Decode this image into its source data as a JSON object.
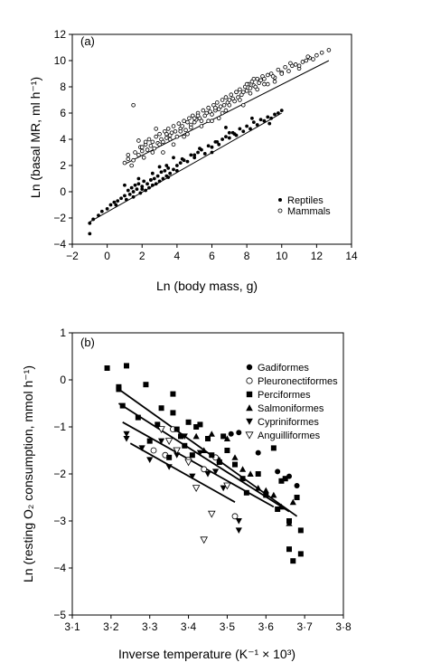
{
  "chart_data": [
    {
      "panel_label": "(a)",
      "type": "scatter",
      "xlabel": "Ln (body mass, g)",
      "ylabel": "Ln (basal MR, ml h⁻¹)",
      "xlim": [
        -2,
        14
      ],
      "ylim": [
        -4,
        12
      ],
      "xticks": [
        -2,
        0,
        2,
        4,
        6,
        8,
        10,
        12,
        14
      ],
      "yticks": [
        -4,
        -2,
        0,
        2,
        4,
        6,
        8,
        10,
        12
      ],
      "xtick_labels": [
        "−2",
        "0",
        "2",
        "4",
        "6",
        "8",
        "10",
        "12",
        "14"
      ],
      "ytick_labels": [
        "−4",
        "−2",
        "0",
        "2",
        "4",
        "6",
        "8",
        "10",
        "12"
      ],
      "grid": false,
      "legend_position": "bottom-right",
      "series": [
        {
          "name": "Reptiles",
          "marker": "filled-circle",
          "trend": {
            "x": [
              -1.0,
              10.0
            ],
            "y": [
              -2.3,
              6.0
            ]
          },
          "x": [
            -1.0,
            -0.8,
            -0.5,
            -0.3,
            0.0,
            0.2,
            0.4,
            0.6,
            0.8,
            1.0,
            1.1,
            1.2,
            1.3,
            1.4,
            1.5,
            1.6,
            1.7,
            1.8,
            1.9,
            2.0,
            2.1,
            2.2,
            2.3,
            2.4,
            2.5,
            2.6,
            2.7,
            2.8,
            2.9,
            3.0,
            3.1,
            3.2,
            3.3,
            3.4,
            3.5,
            3.6,
            3.8,
            4.0,
            4.2,
            4.4,
            4.6,
            4.8,
            5.0,
            5.2,
            5.4,
            5.6,
            5.8,
            6.0,
            6.2,
            6.4,
            6.6,
            6.8,
            7.0,
            7.2,
            7.4,
            7.6,
            7.8,
            8.0,
            8.2,
            8.4,
            8.6,
            8.8,
            9.0,
            9.2,
            9.4,
            9.6,
            9.8,
            10.0,
            1.5,
            2.0,
            2.5,
            3.0,
            3.5,
            4.0,
            5.0,
            6.0,
            7.0,
            1.0,
            1.8,
            2.6,
            3.4,
            4.3,
            5.3,
            6.3,
            7.3,
            8.3,
            9.3,
            -1.0,
            0.5,
            3.8,
            6.8
          ],
          "y": [
            -2.4,
            -2.1,
            -1.8,
            -1.5,
            -1.3,
            -1.0,
            -0.8,
            -0.7,
            -0.5,
            -0.3,
            -0.6,
            0.1,
            -0.2,
            0.3,
            0.0,
            0.5,
            0.2,
            0.6,
            -0.1,
            0.4,
            0.8,
            0.1,
            0.6,
            0.3,
            0.9,
            0.5,
            1.0,
            0.6,
            1.2,
            0.8,
            1.5,
            1.0,
            1.6,
            1.2,
            1.8,
            1.4,
            1.7,
            2.0,
            2.2,
            2.4,
            2.3,
            2.8,
            2.6,
            3.0,
            3.2,
            2.9,
            3.5,
            3.4,
            3.8,
            3.6,
            4.0,
            4.2,
            4.1,
            4.5,
            4.3,
            4.8,
            4.6,
            5.0,
            4.8,
            5.3,
            5.1,
            5.5,
            5.4,
            5.7,
            5.6,
            5.9,
            6.0,
            6.2,
            -0.4,
            0.2,
            0.9,
            1.9,
            1.1,
            1.6,
            2.8,
            3.0,
            4.5,
            0.5,
            1.0,
            1.4,
            2.0,
            2.5,
            3.3,
            3.8,
            4.4,
            5.6,
            5.2,
            -3.2,
            -1.0,
            2.6,
            4.9
          ]
        },
        {
          "name": "Mammals",
          "marker": "open-circle",
          "trend": {
            "x": [
              1.0,
              12.7
            ],
            "y": [
              2.1,
              10.0
            ]
          },
          "x": [
            1.0,
            1.2,
            1.4,
            1.5,
            1.6,
            1.8,
            1.9,
            2.0,
            2.1,
            2.2,
            2.3,
            2.4,
            2.5,
            2.6,
            2.7,
            2.8,
            2.9,
            3.0,
            3.1,
            3.2,
            3.3,
            3.4,
            3.5,
            3.6,
            3.7,
            3.8,
            3.9,
            4.0,
            4.1,
            4.2,
            4.3,
            4.4,
            4.5,
            4.6,
            4.7,
            4.8,
            4.9,
            5.0,
            5.1,
            5.2,
            5.3,
            5.4,
            5.5,
            5.6,
            5.7,
            5.8,
            5.9,
            6.0,
            6.1,
            6.2,
            6.3,
            6.4,
            6.5,
            6.6,
            6.7,
            6.8,
            6.9,
            7.0,
            7.1,
            7.2,
            7.3,
            7.4,
            7.5,
            7.6,
            7.7,
            7.8,
            7.9,
            8.0,
            8.1,
            8.2,
            8.3,
            8.4,
            8.5,
            8.6,
            8.7,
            8.8,
            8.9,
            9.0,
            9.2,
            9.4,
            9.6,
            9.8,
            10.0,
            10.2,
            10.4,
            10.6,
            10.8,
            11.0,
            11.2,
            11.4,
            11.6,
            11.8,
            12.0,
            12.3,
            12.7,
            1.5,
            2.2,
            2.6,
            3.0,
            3.4,
            3.8,
            4.2,
            4.6,
            5.0,
            5.4,
            5.8,
            6.2,
            6.6,
            7.0,
            7.4,
            7.8,
            8.2,
            8.6,
            9.0,
            9.5,
            10.5,
            11.5,
            2.0,
            2.8,
            3.6,
            4.4,
            5.2,
            6.0,
            6.8,
            7.6,
            8.4,
            9.2,
            10.0,
            1.2,
            1.8,
            3.2,
            4.8,
            6.4,
            8.0,
            9.6,
            11.0
          ],
          "y": [
            2.2,
            2.5,
            2.0,
            6.6,
            3.0,
            2.8,
            3.4,
            3.1,
            2.6,
            3.6,
            3.2,
            4.0,
            3.5,
            3.8,
            3.3,
            4.2,
            3.7,
            4.4,
            4.0,
            3.8,
            4.6,
            4.1,
            4.8,
            4.3,
            4.5,
            5.0,
            4.6,
            4.2,
            5.2,
            4.8,
            5.0,
            5.4,
            4.7,
            5.3,
            5.6,
            5.1,
            5.8,
            5.3,
            5.5,
            6.0,
            5.6,
            5.4,
            6.2,
            5.8,
            6.0,
            6.4,
            6.1,
            5.9,
            6.6,
            6.2,
            6.8,
            6.3,
            6.5,
            7.0,
            6.6,
            7.2,
            6.8,
            7.0,
            7.4,
            7.1,
            6.9,
            7.6,
            7.2,
            7.8,
            7.4,
            7.6,
            8.0,
            7.7,
            8.2,
            7.9,
            8.4,
            8.1,
            8.0,
            8.6,
            8.3,
            8.5,
            8.8,
            8.6,
            8.9,
            9.0,
            8.7,
            9.3,
            9.1,
            9.5,
            9.2,
            9.6,
            9.7,
            9.4,
            9.9,
            10.0,
            10.2,
            10.1,
            10.4,
            10.6,
            10.8,
            2.4,
            3.8,
            3.0,
            3.6,
            4.4,
            3.6,
            4.6,
            4.4,
            5.6,
            5.0,
            5.4,
            6.4,
            6.0,
            6.6,
            7.6,
            6.6,
            7.5,
            7.8,
            8.2,
            8.8,
            9.8,
            10.3,
            3.4,
            4.8,
            4.0,
            4.2,
            5.8,
            5.4,
            6.2,
            7.0,
            8.6,
            8.2,
            9.0,
            2.8,
            3.9,
            3.0,
            4.9,
            5.6,
            8.2,
            8.4,
            9.6
          ]
        }
      ]
    },
    {
      "panel_label": "(b)",
      "type": "scatter",
      "xlabel": "Inverse temperature (K⁻¹ × 10³)",
      "ylabel": "Ln (resting O₂ consumption, mmol h⁻¹)",
      "xlim": [
        3.1,
        3.8
      ],
      "ylim": [
        -5,
        1
      ],
      "xticks": [
        3.1,
        3.2,
        3.3,
        3.4,
        3.5,
        3.6,
        3.7,
        3.8
      ],
      "yticks": [
        -5,
        -4,
        -3,
        -2,
        -1,
        0,
        1
      ],
      "xtick_labels": [
        "3·1",
        "3·2",
        "3·3",
        "3·4",
        "3·5",
        "3·6",
        "3·7",
        "3·8"
      ],
      "ytick_labels": [
        "−5",
        "−4",
        "−3",
        "−2",
        "−1",
        "0",
        "1"
      ],
      "grid": false,
      "legend_position": "top-right",
      "trend_lines": [
        {
          "x": [
            3.22,
            3.68
          ],
          "y": [
            -0.2,
            -2.9
          ]
        },
        {
          "x": [
            3.22,
            3.66
          ],
          "y": [
            -0.5,
            -2.8
          ]
        },
        {
          "x": [
            3.23,
            3.62
          ],
          "y": [
            -0.9,
            -2.7
          ]
        },
        {
          "x": [
            3.25,
            3.52
          ],
          "y": [
            -1.35,
            -2.6
          ]
        }
      ],
      "series": [
        {
          "name": "Gadiformes",
          "marker": "filled-circle",
          "x": [
            3.51,
            3.53,
            3.58,
            3.63,
            3.66,
            3.68
          ],
          "y": [
            -1.15,
            -1.12,
            -1.55,
            -1.95,
            -2.05,
            -2.25
          ]
        },
        {
          "name": "Pleuronectiformes",
          "marker": "open-circle",
          "x": [
            3.31,
            3.34,
            3.36,
            3.4,
            3.44,
            3.47,
            3.52
          ],
          "y": [
            -1.5,
            -1.6,
            -1.05,
            -1.7,
            -1.9,
            -1.65,
            -2.9
          ]
        },
        {
          "name": "Perciformes",
          "marker": "filled-square",
          "x": [
            3.19,
            3.22,
            3.23,
            3.24,
            3.27,
            3.29,
            3.3,
            3.32,
            3.33,
            3.35,
            3.36,
            3.36,
            3.37,
            3.38,
            3.39,
            3.4,
            3.41,
            3.42,
            3.43,
            3.45,
            3.46,
            3.48,
            3.49,
            3.5,
            3.52,
            3.54,
            3.55,
            3.58,
            3.6,
            3.62,
            3.63,
            3.64,
            3.65,
            3.66,
            3.66,
            3.67,
            3.68,
            3.69,
            3.69,
            3.22
          ],
          "y": [
            0.25,
            -0.2,
            -0.55,
            0.3,
            -0.8,
            -0.1,
            -1.3,
            -0.95,
            -0.6,
            -1.65,
            -0.3,
            -0.7,
            -1.05,
            -1.2,
            -1.4,
            -0.9,
            -1.6,
            -1.0,
            -0.95,
            -1.25,
            -1.6,
            -1.75,
            -1.2,
            -1.5,
            -1.8,
            -2.1,
            -2.4,
            -2.0,
            -2.45,
            -1.45,
            -2.75,
            -2.15,
            -2.1,
            -3.0,
            -3.6,
            -3.85,
            -2.5,
            -3.2,
            -3.7,
            -0.15
          ]
        },
        {
          "name": "Salmoniformes",
          "marker": "filled-triangle-up",
          "x": [
            3.42,
            3.44,
            3.46,
            3.48,
            3.5,
            3.52,
            3.54,
            3.56,
            3.58,
            3.6,
            3.62,
            3.64,
            3.66,
            3.67
          ],
          "y": [
            -1.2,
            -1.5,
            -1.15,
            -1.7,
            -1.25,
            -1.65,
            -1.9,
            -2.0,
            -2.3,
            -2.35,
            -2.45,
            -2.7,
            -3.05,
            -2.6
          ]
        },
        {
          "name": "Cypriniformes",
          "marker": "filled-triangle-down",
          "x": [
            3.24,
            3.28,
            3.3,
            3.33,
            3.35,
            3.37,
            3.39,
            3.41,
            3.43,
            3.45,
            3.47,
            3.49,
            3.53,
            3.53,
            3.24
          ],
          "y": [
            -1.15,
            -1.45,
            -1.7,
            -1.3,
            -1.85,
            -1.6,
            -1.2,
            -2.05,
            -1.55,
            -2.0,
            -1.95,
            -2.3,
            -3.0,
            -3.2,
            -1.25
          ]
        },
        {
          "name": "Anguilliformes",
          "marker": "open-triangle-down",
          "x": [
            3.33,
            3.35,
            3.37,
            3.4,
            3.42,
            3.44,
            3.46,
            3.5
          ],
          "y": [
            -1.05,
            -1.3,
            -1.5,
            -1.75,
            -2.3,
            -3.4,
            -2.85,
            -2.25
          ]
        }
      ]
    }
  ]
}
